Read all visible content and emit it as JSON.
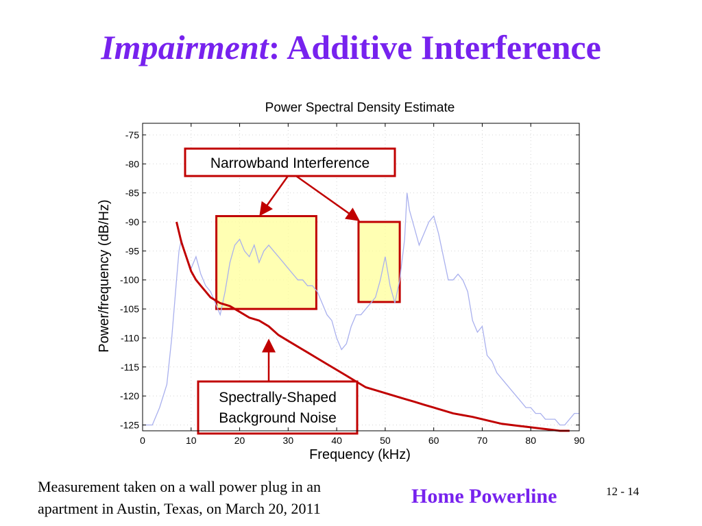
{
  "slide": {
    "title_italic": "Impairment",
    "title_rest": ": Additive Interference",
    "footer_line1": "Measurement taken on a wall power plug in an",
    "footer_line2": "apartment in Austin, Texas, on March 20, 2011",
    "brand": "Home Powerline",
    "page_number": "12 - 14"
  },
  "colors": {
    "title": "#7722ee",
    "psd_trace": "#a9b0ee",
    "noise_curve": "#c00000",
    "annotation_border": "#c00000",
    "highlight_fill": "#ffff99"
  },
  "chart_data": {
    "type": "line",
    "title": "Power Spectral Density Estimate",
    "xlabel": "Frequency (kHz)",
    "ylabel": "Power/frequency (dB/Hz)",
    "xlim": [
      0,
      90
    ],
    "ylim": [
      -126,
      -73
    ],
    "xticks": [
      0,
      10,
      20,
      30,
      40,
      50,
      60,
      70,
      80,
      90
    ],
    "yticks": [
      -75,
      -80,
      -85,
      -90,
      -95,
      -100,
      -105,
      -110,
      -115,
      -120,
      -125
    ],
    "grid": true,
    "series": [
      {
        "role": "psd",
        "x": [
          0,
          2,
          3.5,
          5,
          6,
          7,
          7.5,
          8,
          9,
          10,
          11,
          12,
          13,
          14,
          15,
          16,
          17,
          18,
          19,
          20,
          21,
          22,
          23,
          24,
          25,
          26,
          27,
          28,
          29,
          30,
          31,
          32,
          33,
          34,
          35,
          36,
          37,
          38,
          39,
          40,
          41,
          42,
          43,
          44,
          45,
          46,
          47,
          48,
          49,
          50,
          51,
          52,
          53,
          54,
          54.5,
          55,
          56,
          57,
          58,
          59,
          60,
          61,
          62,
          63,
          64,
          65,
          66,
          67,
          68,
          69,
          70,
          71,
          72,
          73,
          74,
          75,
          76,
          77,
          78,
          79,
          80,
          81,
          82,
          83,
          84,
          85,
          86,
          87,
          88,
          89,
          90
        ],
        "y": [
          -125,
          -125,
          -122,
          -118,
          -110,
          -100,
          -95,
          -93,
          -96,
          -98,
          -96,
          -99,
          -101,
          -102,
          -104,
          -106,
          -102,
          -97,
          -94,
          -93,
          -95,
          -96,
          -94,
          -97,
          -95,
          -94,
          -95,
          -96,
          -97,
          -98,
          -99,
          -100,
          -100,
          -101,
          -101,
          -102,
          -104,
          -106,
          -107,
          -110,
          -112,
          -111,
          -108,
          -106,
          -106,
          -105,
          -104,
          -103,
          -100,
          -96,
          -101,
          -104,
          -100,
          -93,
          -85,
          -88,
          -91,
          -94,
          -92,
          -90,
          -89,
          -92,
          -96,
          -100,
          -100,
          -99,
          -100,
          -102,
          -107,
          -109,
          -108,
          -113,
          -114,
          -116,
          -117,
          -118,
          -119,
          -120,
          -121,
          -122,
          -122,
          -123,
          -123,
          -124,
          -124,
          -124,
          -125,
          -125,
          -124,
          -123,
          -123
        ]
      },
      {
        "role": "background-noise",
        "x": [
          7,
          8,
          9,
          10,
          11,
          12,
          13,
          14,
          15,
          16,
          18,
          20,
          22,
          24,
          26,
          28,
          30,
          32,
          34,
          36,
          38,
          40,
          42,
          44,
          46,
          48,
          50,
          52,
          54,
          56,
          58,
          60,
          62,
          64,
          66,
          68,
          70,
          72,
          74,
          76,
          78,
          80,
          82,
          84,
          86,
          88
        ],
        "y": [
          -90,
          -93.5,
          -96,
          -98.5,
          -100,
          -101,
          -102,
          -103,
          -103.5,
          -104,
          -104.5,
          -105.5,
          -106.5,
          -107,
          -108,
          -109.5,
          -110.5,
          -111.5,
          -112.5,
          -113.5,
          -114.5,
          -115.5,
          -116.5,
          -117.5,
          -118.5,
          -119,
          -119.5,
          -120,
          -120.5,
          -121,
          -121.5,
          -122,
          -122.5,
          -123,
          -123.3,
          -123.6,
          -124,
          -124.4,
          -124.8,
          -125,
          -125.2,
          -125.4,
          -125.6,
          -125.8,
          -126,
          -126
        ]
      }
    ],
    "regions": [
      {
        "x": [
          15.2,
          35.8
        ],
        "y": [
          -89,
          -105
        ]
      },
      {
        "x": [
          44.5,
          53
        ],
        "y": [
          -90,
          -103.8
        ]
      }
    ],
    "annotations": {
      "narrowband_label": "Narrowband Interference",
      "noise_label_line1": "Spectrally-Shaped",
      "noise_label_line2": "Background Noise"
    }
  }
}
